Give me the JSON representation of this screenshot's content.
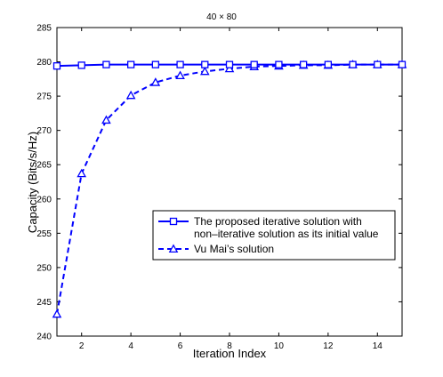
{
  "chart_data": {
    "type": "line",
    "title": "40 × 80",
    "xlabel": "Iteration Index",
    "ylabel": "Capacity (Bits/s/Hz)",
    "xlim": [
      1,
      15
    ],
    "ylim": [
      240,
      285
    ],
    "xticks": [
      2,
      4,
      6,
      8,
      10,
      12,
      14
    ],
    "yticks": [
      240,
      245,
      250,
      255,
      260,
      265,
      270,
      275,
      280,
      285
    ],
    "grid": false,
    "legend_position": "center-right",
    "x": [
      1,
      2,
      3,
      4,
      5,
      6,
      7,
      8,
      9,
      10,
      11,
      12,
      13,
      14,
      15
    ],
    "series": [
      {
        "name": "The proposed iterative solution with non–iterative solution as its initial value",
        "legend_lines": [
          "The proposed iterative solution with",
          "non–iterative solution as its initial value"
        ],
        "values": [
          279.4,
          279.5,
          279.6,
          279.6,
          279.6,
          279.6,
          279.6,
          279.6,
          279.6,
          279.6,
          279.6,
          279.6,
          279.6,
          279.6,
          279.6
        ],
        "marker": "square",
        "line_style": "solid",
        "color": "#0000ff"
      },
      {
        "name": "Vu Mai’s solution",
        "legend_lines": [
          "Vu Mai’s solution"
        ],
        "values": [
          243.2,
          263.7,
          271.5,
          275.1,
          277.0,
          278.0,
          278.6,
          279.0,
          279.3,
          279.4,
          279.5,
          279.5,
          279.6,
          279.6,
          279.6
        ],
        "marker": "triangle",
        "line_style": "dashed",
        "color": "#0000ff"
      }
    ]
  }
}
